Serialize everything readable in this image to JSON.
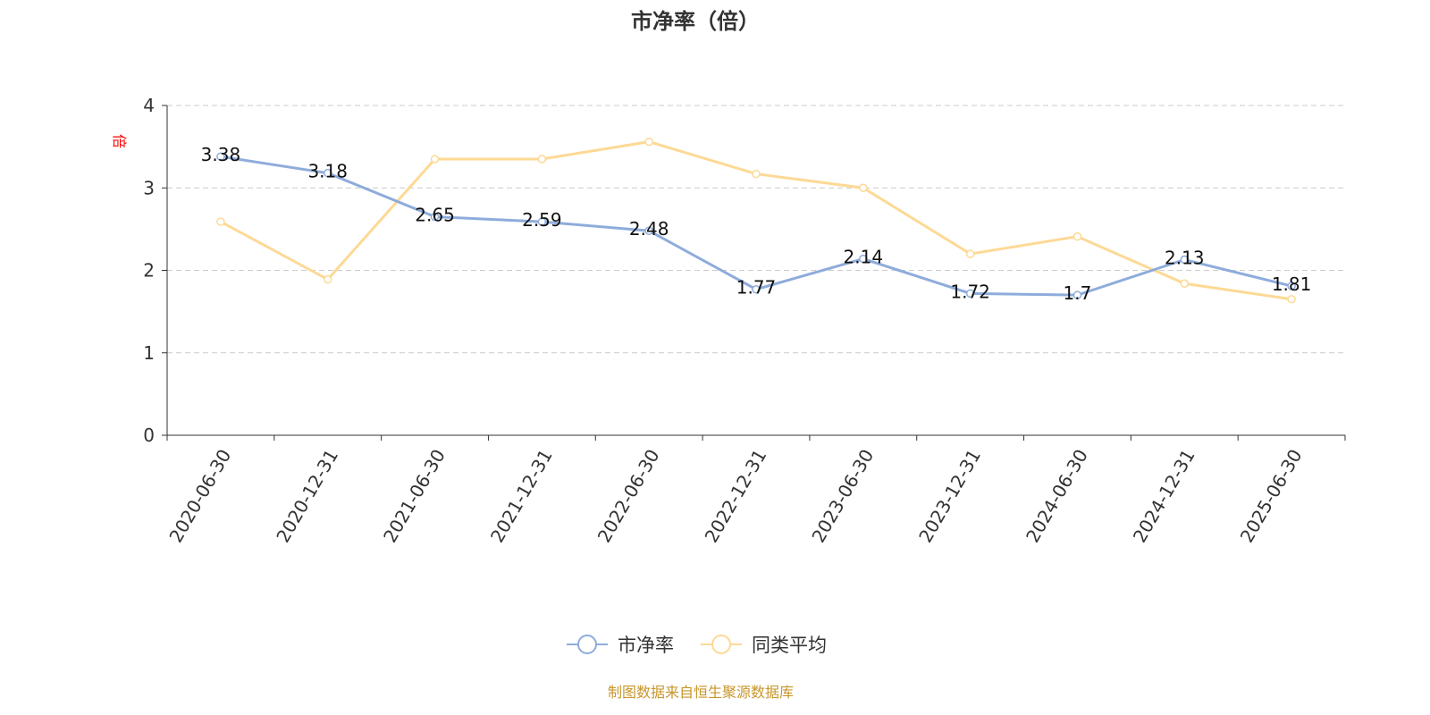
{
  "chart_data": {
    "type": "line",
    "title": "市净率（倍）",
    "ylabel": "倍",
    "xlabel": "",
    "ylim": [
      0,
      4
    ],
    "yticks": [
      0,
      1,
      2,
      3,
      4
    ],
    "grid": true,
    "legend_position": "bottom",
    "categories": [
      "2020-06-30",
      "2020-12-31",
      "2021-06-30",
      "2021-12-31",
      "2022-06-30",
      "2022-12-31",
      "2023-06-30",
      "2023-12-31",
      "2024-06-30",
      "2024-12-31",
      "2025-06-30"
    ],
    "series": [
      {
        "name": "市净率",
        "color": "#8eacdb",
        "show_labels": true,
        "values": [
          3.38,
          3.18,
          2.65,
          2.59,
          2.48,
          1.77,
          2.14,
          1.72,
          1.7,
          2.13,
          1.81
        ]
      },
      {
        "name": "同类平均",
        "color": "#fdd995",
        "show_labels": false,
        "values": [
          2.59,
          1.89,
          3.35,
          3.35,
          3.56,
          3.17,
          3.0,
          2.2,
          2.41,
          1.84,
          1.65
        ]
      }
    ]
  },
  "source": "制图数据来自恒生聚源数据库",
  "colors": {
    "axis": "#333333",
    "grid": "#cccccc",
    "ylabel": "#ff0000",
    "source": "#c8962a"
  }
}
